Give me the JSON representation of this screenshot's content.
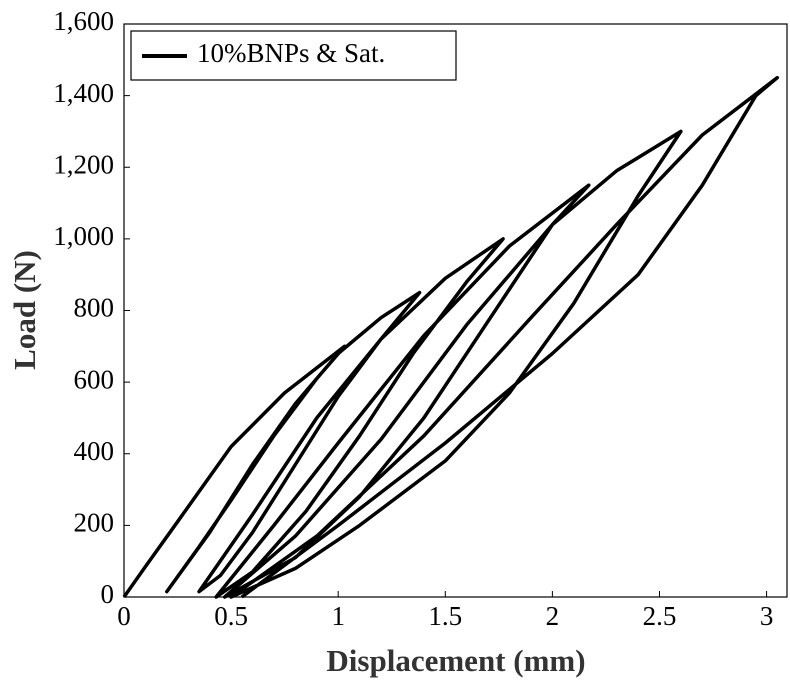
{
  "chart_data": {
    "type": "line",
    "x_label": "Displacement (mm)",
    "y_label": "Load (N)",
    "xlim": [
      0,
      3.1
    ],
    "ylim": [
      0,
      1600
    ],
    "xticks": [
      0,
      0.5,
      1,
      1.5,
      2,
      2.5,
      3
    ],
    "yticks": [
      0,
      200,
      400,
      600,
      800,
      {
        "value": 1000,
        "label": "1,000"
      },
      {
        "value": 1200,
        "label": "1,200"
      },
      {
        "value": 1400,
        "label": "1,400"
      },
      {
        "value": 1600,
        "label": "1,600"
      }
    ],
    "grid": false,
    "legend": "upper left",
    "x": [
      0,
      0.1,
      0.25,
      0.5,
      0.75,
      1.03,
      0.9,
      0.7,
      0.5,
      0.35,
      0.2,
      0.4,
      0.6,
      0.8,
      1.0,
      1.2,
      1.38,
      1.2,
      1.0,
      0.8,
      0.6,
      0.45,
      0.35,
      0.6,
      0.9,
      1.2,
      1.5,
      1.77,
      1.6,
      1.35,
      1.1,
      0.85,
      0.6,
      0.43,
      0.7,
      1.0,
      1.4,
      1.8,
      2.17,
      2.0,
      1.7,
      1.4,
      1.1,
      0.8,
      0.47,
      0.8,
      1.2,
      1.6,
      2.0,
      2.3,
      2.6,
      2.4,
      2.1,
      1.8,
      1.5,
      1.1,
      0.8,
      0.5,
      0.9,
      1.4,
      1.9,
      2.3,
      2.7,
      3.05,
      2.95,
      2.7,
      2.4,
      2.0,
      1.5,
      1.0,
      0.55
    ],
    "series": [
      {
        "name": "10%BNPs & Sat.",
        "color": "#000000",
        "values": [
          0,
          85,
          210,
          420,
          570,
          700,
          610,
          450,
          270,
          140,
          15,
          180,
          370,
          540,
          680,
          780,
          850,
          720,
          560,
          370,
          180,
          60,
          15,
          230,
          500,
          720,
          890,
          1000,
          880,
          680,
          450,
          240,
          70,
          0,
          200,
          430,
          730,
          980,
          1150,
          1040,
          770,
          500,
          280,
          110,
          0,
          170,
          440,
          760,
          1040,
          1190,
          1300,
          1120,
          820,
          570,
          380,
          200,
          80,
          0,
          170,
          450,
          780,
          1040,
          1290,
          1450,
          1400,
          1150,
          900,
          680,
          430,
          200,
          0
        ]
      }
    ]
  }
}
